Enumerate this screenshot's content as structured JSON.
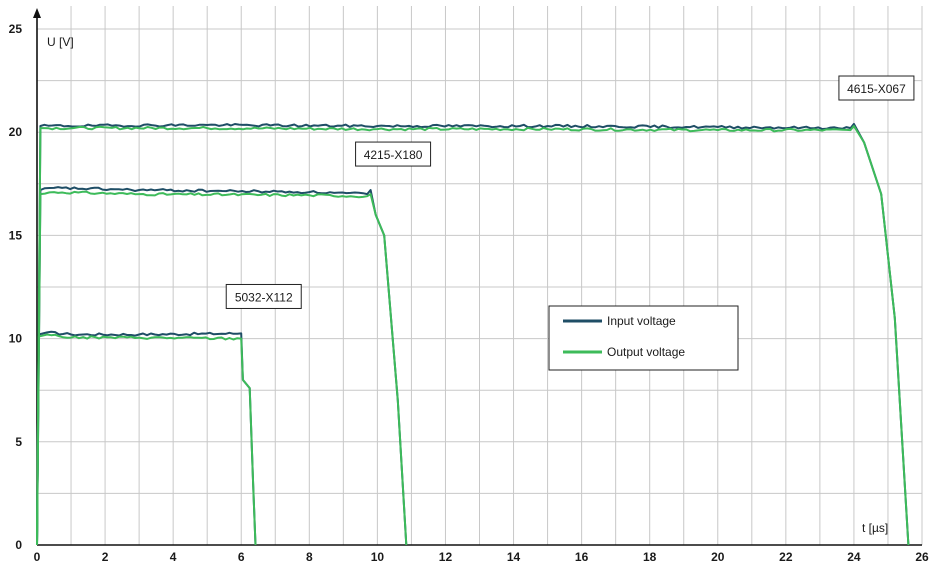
{
  "chart_data": {
    "type": "line",
    "xlabel": "t [µs]",
    "ylabel": "U [V]",
    "xlim": [
      0,
      26
    ],
    "ylim": [
      0,
      25
    ],
    "xticks": [
      "0",
      "2",
      "4",
      "6",
      "8",
      "10",
      "12",
      "14",
      "16",
      "18",
      "20",
      "22",
      "24",
      "26"
    ],
    "yticks": [
      "0",
      "5",
      "10",
      "15",
      "20",
      "25"
    ],
    "grid": true,
    "legend_position": "center-right",
    "series": [
      {
        "name": "Input voltage",
        "color": "#1f4e66",
        "curves": [
          [
            [
              0,
              0
            ],
            [
              0.05,
              10.2
            ],
            [
              0.3,
              10.3
            ],
            [
              1.0,
              10.2
            ],
            [
              3.0,
              10.2
            ],
            [
              6.0,
              10.25
            ],
            [
              6.05,
              8.0
            ],
            [
              6.25,
              7.6
            ],
            [
              6.35,
              3.0
            ],
            [
              6.42,
              0
            ]
          ],
          [
            [
              0,
              0
            ],
            [
              0.1,
              17.2
            ],
            [
              0.5,
              17.3
            ],
            [
              3.0,
              17.2
            ],
            [
              8.0,
              17.1
            ],
            [
              9.7,
              17.0
            ],
            [
              9.8,
              17.2
            ],
            [
              9.95,
              16.0
            ],
            [
              10.2,
              15.0
            ],
            [
              10.6,
              7.0
            ],
            [
              10.85,
              0
            ]
          ],
          [
            [
              0,
              0
            ],
            [
              0.1,
              20.3
            ],
            [
              5.0,
              20.35
            ],
            [
              10.0,
              20.3
            ],
            [
              15.0,
              20.3
            ],
            [
              20.0,
              20.25
            ],
            [
              23.9,
              20.2
            ],
            [
              24.0,
              20.4
            ],
            [
              24.3,
              19.5
            ],
            [
              24.8,
              17.0
            ],
            [
              25.2,
              11.0
            ],
            [
              25.6,
              0
            ]
          ]
        ]
      },
      {
        "name": "Output voltage",
        "color": "#3dbb5a",
        "curves": [
          [
            [
              0,
              0
            ],
            [
              0.05,
              10.1
            ],
            [
              0.3,
              10.2
            ],
            [
              1.0,
              10.05
            ],
            [
              3.0,
              10.05
            ],
            [
              6.0,
              10.0
            ],
            [
              6.05,
              8.0
            ],
            [
              6.25,
              7.6
            ],
            [
              6.35,
              3.0
            ],
            [
              6.42,
              0
            ]
          ],
          [
            [
              0,
              0
            ],
            [
              0.1,
              17.0
            ],
            [
              0.5,
              17.1
            ],
            [
              3.0,
              17.0
            ],
            [
              8.0,
              16.95
            ],
            [
              9.7,
              16.9
            ],
            [
              9.8,
              17.0
            ],
            [
              9.95,
              16.0
            ],
            [
              10.2,
              15.0
            ],
            [
              10.6,
              7.0
            ],
            [
              10.85,
              0
            ]
          ],
          [
            [
              0,
              0
            ],
            [
              0.1,
              20.2
            ],
            [
              5.0,
              20.2
            ],
            [
              10.0,
              20.15
            ],
            [
              15.0,
              20.15
            ],
            [
              20.0,
              20.1
            ],
            [
              23.9,
              20.1
            ],
            [
              24.0,
              20.3
            ],
            [
              24.3,
              19.5
            ],
            [
              24.8,
              17.0
            ],
            [
              25.2,
              11.0
            ],
            [
              25.6,
              0
            ]
          ]
        ]
      }
    ],
    "annotations": [
      {
        "text": "5032-X112",
        "x": 6.0,
        "y": 10.2
      },
      {
        "text": "4215-X180",
        "x": 9.8,
        "y": 17.1
      },
      {
        "text": "4615-X067",
        "x": 24.0,
        "y": 20.3
      }
    ]
  }
}
